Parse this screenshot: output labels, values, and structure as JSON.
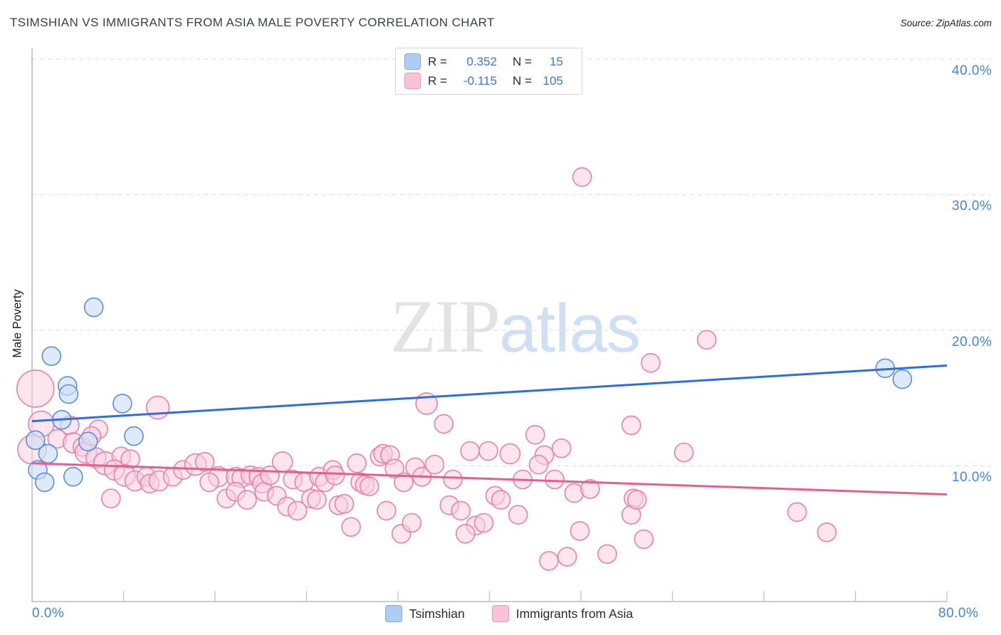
{
  "header": {
    "title": "TSIMSHIAN VS IMMIGRANTS FROM ASIA MALE POVERTY CORRELATION CHART",
    "source": "Source: ZipAtlas.com"
  },
  "watermark": {
    "zip": "ZIP",
    "atlas": "atlas"
  },
  "legend_box": {
    "rows": [
      {
        "r_label": "R =",
        "r_value": "0.352",
        "n_label": "N =",
        "n_value": "15"
      },
      {
        "r_label": "R =",
        "r_value": "-0.115",
        "n_label": "N =",
        "n_value": "105"
      }
    ]
  },
  "bottom_legend": [
    {
      "label": "Tsimshian"
    },
    {
      "label": "Immigrants from Asia"
    }
  ],
  "chart_data": {
    "type": "scatter",
    "title": "Tsimshian vs Immigrants from Asia Male Poverty",
    "xlabel": "",
    "ylabel": "Male Poverty",
    "x_range_pct": [
      0,
      80
    ],
    "y_range_pct": [
      0,
      41.3
    ],
    "grid": true,
    "x_tick_labels": {
      "min": "0.0%",
      "max": "80.0%"
    },
    "y_ticks": [
      {
        "value": 40,
        "label": "40.0%"
      },
      {
        "value": 30,
        "label": "30.0%"
      },
      {
        "value": 20,
        "label": "20.0%"
      },
      {
        "value": 10,
        "label": "10.0%"
      }
    ],
    "series": [
      {
        "name": "Immigrants from Asia",
        "R": -0.115,
        "N": 105,
        "fill": "#fbd0e0",
        "fill_opacity": 0.55,
        "stroke": "#ee7fa5",
        "swatch_fill": "#f9c2d6",
        "swatch_stroke": "#ec9bb8",
        "points": [
          [
            0.3,
            15.7,
            26
          ],
          [
            0.8,
            13.1,
            18
          ],
          [
            0.0,
            11.2,
            20
          ],
          [
            3.3,
            13.0,
            13
          ],
          [
            5.8,
            12.7,
            13
          ],
          [
            2.2,
            12.0,
            13
          ],
          [
            3.6,
            11.7,
            14
          ],
          [
            4.4,
            11.4,
            13
          ],
          [
            4.7,
            11.0,
            15
          ],
          [
            5.6,
            10.6,
            14
          ],
          [
            6.4,
            10.2,
            16
          ],
          [
            7.8,
            10.7,
            13
          ],
          [
            8.6,
            10.5,
            13
          ],
          [
            7.2,
            9.7,
            14
          ],
          [
            8.1,
            9.3,
            15
          ],
          [
            9.0,
            8.9,
            14
          ],
          [
            10.0,
            9.2,
            13
          ],
          [
            11.0,
            14.3,
            16
          ],
          [
            10.3,
            8.7,
            13
          ],
          [
            11.1,
            8.9,
            14
          ],
          [
            12.3,
            9.2,
            13
          ],
          [
            13.2,
            9.7,
            13
          ],
          [
            14.3,
            10.1,
            15
          ],
          [
            15.1,
            10.3,
            13
          ],
          [
            16.3,
            9.2,
            14
          ],
          [
            15.5,
            8.8,
            13
          ],
          [
            6.9,
            7.6,
            13
          ],
          [
            17.0,
            7.6,
            13
          ],
          [
            5.2,
            12.2,
            13
          ],
          [
            17.8,
            9.2,
            13
          ],
          [
            18.3,
            9.1,
            13
          ],
          [
            17.8,
            8.1,
            13
          ],
          [
            18.8,
            7.5,
            13
          ],
          [
            19.1,
            9.3,
            13
          ],
          [
            19.8,
            9.2,
            13
          ],
          [
            20.1,
            8.7,
            13
          ],
          [
            20.3,
            8.1,
            13
          ],
          [
            20.8,
            9.3,
            13
          ],
          [
            21.4,
            7.8,
            13
          ],
          [
            21.9,
            10.3,
            14
          ],
          [
            22.3,
            7.0,
            13
          ],
          [
            22.8,
            9.0,
            13
          ],
          [
            23.2,
            6.7,
            13
          ],
          [
            23.8,
            8.8,
            13
          ],
          [
            24.4,
            7.6,
            13
          ],
          [
            24.9,
            7.5,
            13
          ],
          [
            25.1,
            9.2,
            13
          ],
          [
            25.6,
            8.8,
            13
          ],
          [
            26.3,
            9.7,
            13
          ],
          [
            26.5,
            9.3,
            13
          ],
          [
            26.8,
            7.1,
            13
          ],
          [
            27.3,
            7.2,
            13
          ],
          [
            27.9,
            5.5,
            13
          ],
          [
            28.4,
            10.2,
            13
          ],
          [
            28.7,
            8.8,
            13
          ],
          [
            29.1,
            8.6,
            13
          ],
          [
            29.5,
            8.5,
            13
          ],
          [
            30.4,
            10.7,
            13
          ],
          [
            30.7,
            10.9,
            13
          ],
          [
            31.3,
            10.8,
            13
          ],
          [
            31.0,
            6.7,
            13
          ],
          [
            31.7,
            9.8,
            13
          ],
          [
            32.5,
            8.8,
            13
          ],
          [
            32.3,
            5.0,
            13
          ],
          [
            33.2,
            5.8,
            13
          ],
          [
            33.5,
            9.9,
            13
          ],
          [
            34.1,
            9.2,
            13
          ],
          [
            34.5,
            14.6,
            15
          ],
          [
            36.0,
            13.1,
            13
          ],
          [
            38.3,
            11.1,
            13
          ],
          [
            39.9,
            11.1,
            13
          ],
          [
            41.8,
            10.9,
            14
          ],
          [
            44.0,
            12.3,
            13
          ],
          [
            44.8,
            10.8,
            13
          ],
          [
            44.3,
            10.1,
            13
          ],
          [
            46.3,
            11.3,
            13
          ],
          [
            35.2,
            10.1,
            13
          ],
          [
            36.8,
            9.0,
            13
          ],
          [
            42.9,
            9.0,
            13
          ],
          [
            45.7,
            9.0,
            13
          ],
          [
            47.4,
            8.0,
            13
          ],
          [
            48.8,
            8.3,
            13
          ],
          [
            40.5,
            7.8,
            13
          ],
          [
            41.0,
            7.5,
            13
          ],
          [
            36.5,
            7.1,
            13
          ],
          [
            37.5,
            6.7,
            13
          ],
          [
            42.5,
            6.4,
            13
          ],
          [
            38.8,
            5.6,
            13
          ],
          [
            39.5,
            5.8,
            13
          ],
          [
            37.9,
            5.0,
            13
          ],
          [
            47.9,
            5.2,
            13
          ],
          [
            52.4,
            13.0,
            13
          ],
          [
            52.6,
            7.6,
            13
          ],
          [
            52.4,
            6.4,
            13
          ],
          [
            50.3,
            3.5,
            13
          ],
          [
            45.2,
            3.0,
            13
          ],
          [
            46.8,
            3.3,
            13
          ],
          [
            57.0,
            11.0,
            13
          ],
          [
            52.9,
            7.5,
            13
          ],
          [
            53.5,
            4.6,
            13
          ],
          [
            66.9,
            6.6,
            13
          ],
          [
            69.5,
            5.1,
            13
          ],
          [
            48.1,
            31.3,
            13
          ],
          [
            54.1,
            17.6,
            13
          ],
          [
            59.0,
            19.3,
            13
          ]
        ]
      },
      {
        "name": "Tsimshian",
        "R": 0.352,
        "N": 15,
        "fill": "#cbdef7",
        "fill_opacity": 0.65,
        "stroke": "#5b8edc",
        "swatch_fill": "#aecdf2",
        "swatch_stroke": "#7fa9e2",
        "points": [
          [
            5.4,
            21.7,
            13
          ],
          [
            1.7,
            18.1,
            13
          ],
          [
            3.1,
            15.9,
            13
          ],
          [
            3.2,
            15.3,
            13
          ],
          [
            7.9,
            14.6,
            13
          ],
          [
            2.6,
            13.4,
            13
          ],
          [
            0.3,
            11.9,
            13
          ],
          [
            4.9,
            11.8,
            13
          ],
          [
            8.9,
            12.2,
            13
          ],
          [
            1.4,
            10.9,
            13
          ],
          [
            0.5,
            9.7,
            13
          ],
          [
            1.1,
            8.8,
            13
          ],
          [
            3.6,
            9.2,
            13
          ],
          [
            74.6,
            17.2,
            13
          ],
          [
            76.1,
            16.4,
            13
          ]
        ]
      }
    ],
    "trends": [
      {
        "series": "Immigrants from Asia",
        "x": [
          0,
          80
        ],
        "y": [
          10.2,
          7.9
        ],
        "color": "#e75d8d"
      },
      {
        "series": "Tsimshian",
        "x": [
          0,
          80
        ],
        "y": [
          13.3,
          17.4
        ],
        "color": "#2d6fdd"
      }
    ]
  }
}
